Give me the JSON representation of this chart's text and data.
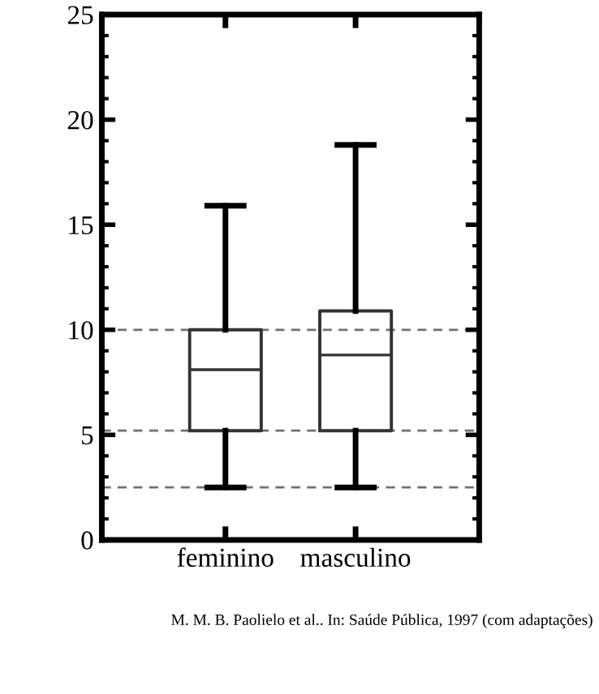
{
  "chart_data": {
    "type": "box",
    "categories": [
      "feminino",
      "masculino"
    ],
    "boxes": [
      {
        "low": 2.5,
        "q1": 5.2,
        "median": 8.1,
        "q3": 10.0,
        "high": 15.9
      },
      {
        "low": 2.5,
        "q1": 5.2,
        "median": 8.8,
        "q3": 10.9,
        "high": 18.8
      }
    ],
    "ylim": [
      0,
      25
    ],
    "yticks": [
      0,
      5,
      10,
      15,
      20,
      25
    ],
    "ref_lines": [
      {
        "axis": "y",
        "value": 10,
        "color": "#707070",
        "line_style": "dashed"
      },
      {
        "axis": "y",
        "value": 5.2,
        "color": "#707070",
        "line_style": "dashed"
      },
      {
        "axis": "y",
        "value": 2.5,
        "color": "#707070",
        "line_style": "dashed"
      }
    ],
    "grid": false,
    "legend": false,
    "annotations": [
      "M. M. B. Paolielo et al.. In: Saúde Pública, 1997 (com adaptações)"
    ]
  }
}
